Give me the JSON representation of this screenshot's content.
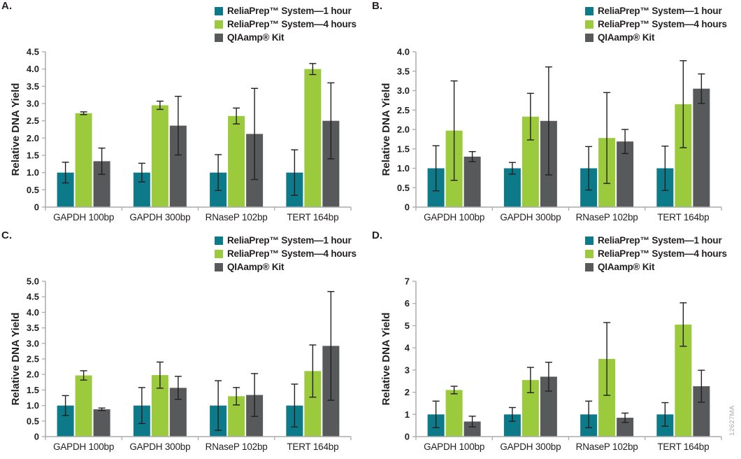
{
  "watermark": "12627MA",
  "chart_data": [
    {
      "panel": "A.",
      "type": "bar",
      "ylabel": "Relative DNA Yield",
      "ylim": [
        0,
        4.5
      ],
      "ystep": 0.5,
      "grid": false,
      "legend_position": "top-right",
      "error_bars": true,
      "categories": [
        "GAPDH 100bp",
        "GAPDH 300bp",
        "RNaseP 102bp",
        "TERT 164bp"
      ],
      "series": [
        {
          "name": "ReliaPrep™ System—1 hour",
          "color": "#0D7A89",
          "values": [
            1.0,
            1.0,
            1.0,
            1.0
          ],
          "errors": [
            0.3,
            0.27,
            0.52,
            0.66
          ]
        },
        {
          "name": "ReliaPrep™ System—4 hours",
          "color": "#9BCA3C",
          "values": [
            2.72,
            2.95,
            2.64,
            4.0
          ],
          "errors": [
            0.04,
            0.12,
            0.23,
            0.16
          ]
        },
        {
          "name": "QIAamp® Kit",
          "color": "#58595B",
          "values": [
            1.33,
            2.36,
            2.12,
            2.5
          ],
          "errors": [
            0.38,
            0.85,
            1.32,
            1.1
          ]
        }
      ]
    },
    {
      "panel": "B.",
      "type": "bar",
      "ylabel": "Relative DNA Yield",
      "ylim": [
        0,
        4.0
      ],
      "ystep": 0.5,
      "grid": false,
      "legend_position": "top-right",
      "error_bars": true,
      "categories": [
        "GAPDH 100bp",
        "GAPDH 300bp",
        "RNaseP 102bp",
        "TERT 164bp"
      ],
      "series": [
        {
          "name": "ReliaPrep™ System—1 hour",
          "color": "#0D7A89",
          "values": [
            1.0,
            1.0,
            1.0,
            1.0
          ],
          "errors": [
            0.58,
            0.15,
            0.56,
            0.57
          ]
        },
        {
          "name": "ReliaPrep™ System—4 hours",
          "color": "#9BCA3C",
          "values": [
            1.97,
            2.33,
            1.78,
            2.65
          ],
          "errors": [
            1.28,
            0.6,
            1.17,
            1.12
          ]
        },
        {
          "name": "QIAamp® Kit",
          "color": "#58595B",
          "values": [
            1.3,
            2.22,
            1.69,
            3.05
          ],
          "errors": [
            0.13,
            1.39,
            0.31,
            0.38
          ]
        }
      ]
    },
    {
      "panel": "C.",
      "type": "bar",
      "ylabel": "Relative DNA Yield",
      "ylim": [
        0,
        5.0
      ],
      "ystep": 0.5,
      "grid": false,
      "legend_position": "top-right",
      "error_bars": true,
      "categories": [
        "GAPDH 100bp",
        "GAPDH 300bp",
        "RNaseP 102bp",
        "TERT 164bp"
      ],
      "series": [
        {
          "name": "ReliaPrep™ System—1 hour",
          "color": "#0D7A89",
          "values": [
            1.0,
            1.0,
            1.0,
            1.0
          ],
          "errors": [
            0.32,
            0.58,
            0.8,
            0.69
          ]
        },
        {
          "name": "ReliaPrep™ System—4 hours",
          "color": "#9BCA3C",
          "values": [
            1.97,
            1.98,
            1.3,
            2.11
          ],
          "errors": [
            0.15,
            0.42,
            0.28,
            0.84
          ]
        },
        {
          "name": "QIAamp® Kit",
          "color": "#58595B",
          "values": [
            0.88,
            1.57,
            1.34,
            2.92
          ],
          "errors": [
            0.04,
            0.37,
            0.69,
            1.75
          ]
        }
      ]
    },
    {
      "panel": "D.",
      "type": "bar",
      "ylabel": "Relative DNA Yield",
      "ylim": [
        0,
        7
      ],
      "ystep": 1,
      "grid": false,
      "legend_position": "top-right",
      "error_bars": true,
      "categories": [
        "GAPDH 100bp",
        "GAPDH 300bp",
        "RNaseP 102bp",
        "TERT 164bp"
      ],
      "series": [
        {
          "name": "ReliaPrep™ System—1 hour",
          "color": "#0D7A89",
          "values": [
            1.0,
            1.0,
            1.0,
            1.0
          ],
          "errors": [
            0.6,
            0.31,
            0.6,
            0.53
          ]
        },
        {
          "name": "ReliaPrep™ System—4 hours",
          "color": "#9BCA3C",
          "values": [
            2.1,
            2.55,
            3.5,
            5.05
          ],
          "errors": [
            0.17,
            0.57,
            1.64,
            0.98
          ]
        },
        {
          "name": "QIAamp® Kit",
          "color": "#58595B",
          "values": [
            0.68,
            2.7,
            0.85,
            2.27
          ],
          "errors": [
            0.24,
            0.65,
            0.21,
            0.72
          ]
        }
      ]
    }
  ]
}
